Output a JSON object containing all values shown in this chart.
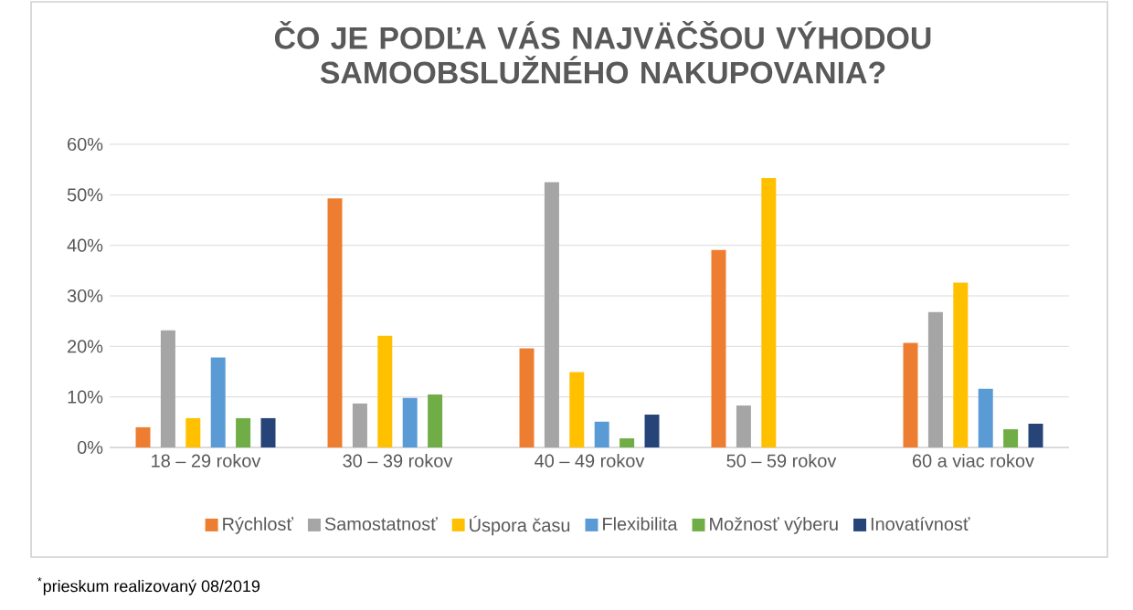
{
  "chart_data": {
    "type": "bar",
    "title": "ČO JE PODĽA VÁS NAJVÄČŠOU VÝHODOU SAMOOBSLUŽNÉHO NAKUPOVANIA?",
    "categories": [
      "18 – 29 rokov",
      "30 – 39 rokov",
      "40 – 49 rokov",
      "50 – 59 rokov",
      "60 a viac rokov"
    ],
    "series": [
      {
        "name": "Rýchlosť",
        "color": "#ed7d31",
        "values": [
          4.0,
          49.3,
          19.6,
          39.1,
          20.7
        ]
      },
      {
        "name": "Samostatnosť",
        "color": "#a5a5a5",
        "values": [
          23.2,
          8.7,
          52.5,
          8.3,
          26.8
        ]
      },
      {
        "name": "Úspora času",
        "color": "#ffc000",
        "values": [
          5.8,
          22.1,
          14.9,
          53.3,
          32.6
        ]
      },
      {
        "name": "Flexibilita",
        "color": "#5b9bd5",
        "values": [
          17.8,
          9.8,
          5.1,
          null,
          11.6
        ]
      },
      {
        "name": "Možnosť výberu",
        "color": "#70ad47",
        "values": [
          5.8,
          10.5,
          1.8,
          null,
          3.6
        ]
      },
      {
        "name": "Inovatívnosť",
        "color": "#264478",
        "values": [
          5.8,
          null,
          6.5,
          null,
          4.7
        ]
      }
    ],
    "ylim": [
      0,
      60
    ],
    "yticks": [
      {
        "value": 0,
        "label": "0%"
      },
      {
        "value": 10,
        "label": "10%"
      },
      {
        "value": 20,
        "label": "20%"
      },
      {
        "value": 30,
        "label": "30%"
      },
      {
        "value": 40,
        "label": "40%"
      },
      {
        "value": 50,
        "label": "50%"
      },
      {
        "value": 60,
        "label": "60%"
      }
    ],
    "grid": "y",
    "legend": "bottom",
    "annotations": [
      "$^{*}$prieskum realizovaný 08/2019"
    ]
  }
}
